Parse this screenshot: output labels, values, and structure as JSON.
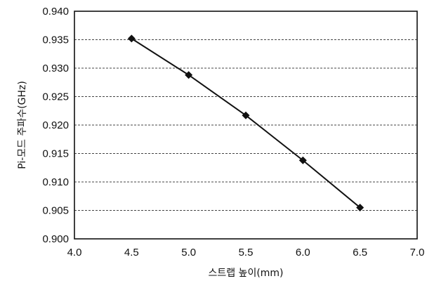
{
  "chart_data": {
    "type": "line",
    "xlabel": "스트랩 높이(mm)",
    "ylabel": "Pi-모드 주파수(GHz)",
    "xlim": [
      4.0,
      7.0
    ],
    "ylim": [
      0.9,
      0.94
    ],
    "x_ticks": [
      "4.0",
      "4.5",
      "5.0",
      "5.5",
      "6.0",
      "6.5",
      "7.0"
    ],
    "y_ticks": [
      "0.900",
      "0.905",
      "0.910",
      "0.915",
      "0.920",
      "0.925",
      "0.930",
      "0.935",
      "0.940"
    ],
    "grid": "horizontal-dashed",
    "legend": "none",
    "series": [
      {
        "color": "#111111",
        "marker": "diamond",
        "x": [
          4.5,
          5.0,
          5.5,
          6.0,
          6.5
        ],
        "y": [
          0.9352,
          0.9288,
          0.9217,
          0.9138,
          0.9055
        ]
      }
    ]
  }
}
